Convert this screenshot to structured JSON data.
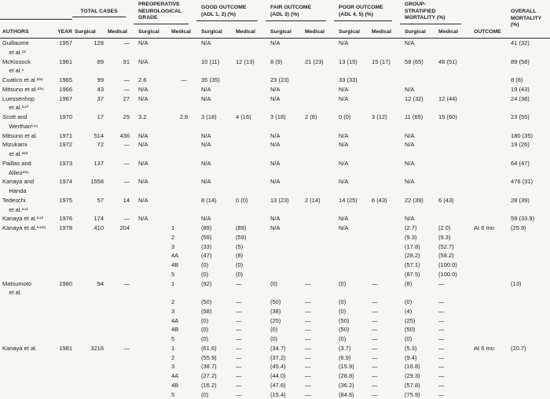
{
  "table": {
    "header": {
      "authors": "AUTHORS",
      "year": "YEAR",
      "surgical": "Surgical",
      "medical": "Medical",
      "outcome": "OUTCOME",
      "overall": "OVERALL\nMORTALITY\n(%)",
      "groups": [
        {
          "label": "TOTAL CASES"
        },
        {
          "label": "PREOPERATIVE\nNEUROLOGICAL\nGRADE"
        },
        {
          "label": "GOOD OUTCOME\n(ADL 1, 2) (%)"
        },
        {
          "label": "FAIR OUTCOME\n(ADL 3) (%)"
        },
        {
          "label": "POOR OUTCOME\n(ADL 4, 5) (%)"
        },
        {
          "label": "GROUP-\nSTRATIFIED\nMORTALITY (%)"
        }
      ]
    },
    "rows": [
      [
        "Guillaume",
        "1957",
        "128",
        "—",
        "N/A",
        "",
        "N/A",
        "",
        "N/A",
        "",
        "N/A",
        "",
        "N/A",
        "",
        "",
        "41 (32)"
      ],
      [
        "    et al.¹³",
        "",
        "",
        "",
        "",
        "",
        "",
        "",
        "",
        "",
        "",
        "",
        "",
        "",
        "",
        ""
      ],
      [
        "McKissock",
        "1961",
        "89",
        "91",
        "N/A",
        "",
        "10 (11)",
        "12 (13)",
        "8 (9)",
        "21 (23)",
        "13 (15)",
        "15 (17)",
        "58 (65)",
        "46 (51)",
        "",
        "89 (58)"
      ],
      [
        "    et al.¹",
        "",
        "",
        "",
        "",
        "",
        "",
        "",
        "",
        "",
        "",
        "",
        "",
        "",
        "",
        ""
      ],
      [
        "Cuatico et al.²³⁸",
        "1965",
        "99",
        "—",
        "2.6",
        "—",
        "35 (35)",
        "",
        "23 (23)",
        "",
        "33 (33)",
        "",
        "",
        "",
        "",
        "8 (8)"
      ],
      [
        "Mitsuno et al.²³⁹",
        "1966",
        "43",
        "—",
        "N/A",
        "",
        "N/A",
        "",
        "N/A",
        "",
        "N/A",
        "",
        "N/A",
        "",
        "",
        "19 (43)"
      ],
      [
        "Luessenhop",
        "1967",
        "37",
        "27",
        "N/A",
        "",
        "N/A",
        "",
        "N/A",
        "",
        "N/A",
        "",
        "12 (32)",
        "12 (44)",
        "",
        "24 (38)"
      ],
      [
        "    et al.²⁴⁰",
        "",
        "",
        "",
        "",
        "",
        "",
        "",
        "",
        "",
        "",
        "",
        "",
        "",
        "",
        ""
      ],
      [
        "Scott and",
        "1970",
        "17",
        "25",
        "3.2",
        "2.8",
        "3 (18)",
        "4 (16)",
        "3 (18)",
        "2 (8)",
        "0 (0)",
        "3 (12)",
        "11 (65)",
        "15 (60)",
        "",
        "23 (55)"
      ],
      [
        "    Werthan¹⁴⁶",
        "",
        "",
        "",
        "",
        "",
        "",
        "",
        "",
        "",
        "",
        "",
        "",
        "",
        "",
        ""
      ],
      [
        "Mitsuno et al.",
        "1971",
        "514",
        "436",
        "N/A",
        "",
        "N/A",
        "",
        "N/A",
        "",
        "N/A",
        "",
        "N/A",
        "",
        "",
        "180 (35)"
      ],
      [
        "Mizukami",
        "1972",
        "72",
        "—",
        "N/A",
        "",
        "N/A",
        "",
        "N/A",
        "",
        "N/A",
        "",
        "N/A",
        "",
        "",
        "19 (26)"
      ],
      [
        "    et al.²²³",
        "",
        "",
        "",
        "",
        "",
        "",
        "",
        "",
        "",
        "",
        "",
        "",
        "",
        "",
        ""
      ],
      [
        "Paillas and",
        "1973",
        "137",
        "—",
        "N/A",
        "",
        "N/A",
        "",
        "N/A",
        "",
        "N/A",
        "",
        "N/A",
        "",
        "",
        "64 (47)"
      ],
      [
        "    Alliez²³⁶",
        "",
        "",
        "",
        "",
        "",
        "",
        "",
        "",
        "",
        "",
        "",
        "",
        "",
        "",
        ""
      ],
      [
        "Kanaya and",
        "1974",
        "1558",
        "—",
        "N/A",
        "",
        "N/A",
        "",
        "N/A",
        "",
        "N/A",
        "",
        "N/A",
        "",
        "",
        "476 (31)"
      ],
      [
        "    Handa",
        "",
        "",
        "",
        "",
        "",
        "",
        "",
        "",
        "",
        "",
        "",
        "",
        "",
        "",
        ""
      ],
      [
        "Tedeschi",
        "1975",
        "57",
        "14",
        "N/A",
        "",
        "8 (14)",
        "0 (0)",
        "13 (23)",
        "2 (14)",
        "14 (25)",
        "6 (43)",
        "22 (39)",
        "6 (43)",
        "",
        "28 (39)"
      ],
      [
        "    et al.²⁴¹",
        "",
        "",
        "",
        "",
        "",
        "",
        "",
        "",
        "",
        "",
        "",
        "",
        "",
        "",
        ""
      ],
      [
        "Kanaya et al.²⁴²",
        "1976",
        "174",
        "—",
        "N/A",
        "",
        "N/A",
        "",
        "N/A",
        "",
        "N/A",
        "",
        "N/A",
        "",
        "",
        "59 (33.9)"
      ],
      [
        "Kanaya et al.²⁴²ᵃ",
        "1978",
        "410",
        "204",
        "@1",
        "",
        "(89)",
        "(89)",
        "N/A",
        "",
        "N/A",
        "",
        "(2.7)",
        "(2.0)",
        "At 6 mo",
        "(25.9)"
      ],
      [
        "",
        "",
        "",
        "",
        "@2",
        "",
        "(59)",
        "(59)",
        "",
        "",
        "",
        "",
        "(9.3)",
        "(9.3)",
        "",
        ""
      ],
      [
        "",
        "",
        "",
        "",
        "@3",
        "",
        "(33)",
        "(5)",
        "",
        "",
        "",
        "",
        "(17.8)",
        "(52.7)",
        "",
        ""
      ],
      [
        "",
        "",
        "",
        "",
        "@4A",
        "",
        "(47)",
        "(8)",
        "",
        "",
        "",
        "",
        "(28.2)",
        "(58.2)",
        "",
        ""
      ],
      [
        "",
        "",
        "",
        "",
        "@4B",
        "",
        "(0)",
        "(0)",
        "",
        "",
        "",
        "",
        "(57.1)",
        "(100.0)",
        "",
        ""
      ],
      [
        "",
        "",
        "",
        "",
        "@5",
        "",
        "(0)",
        "(0)",
        "",
        "",
        "",
        "",
        "(87.5)",
        "(100.0)",
        "",
        ""
      ],
      [
        "Matsumoto",
        "1980",
        "94",
        "—",
        "@1",
        "",
        "(92)",
        "—",
        "(0)",
        "—",
        "(0)",
        "—",
        "(8)",
        "—",
        "",
        "(13)"
      ],
      [
        "    et al.",
        "",
        "",
        "",
        "",
        "",
        "",
        "",
        "",
        "",
        "",
        "",
        "",
        "",
        "",
        ""
      ],
      [
        "",
        "",
        "",
        "",
        "@2",
        "",
        "(50)",
        "—",
        "(50)",
        "—",
        "(0)",
        "—",
        "(0)",
        "—",
        "",
        ""
      ],
      [
        "",
        "",
        "",
        "",
        "@3",
        "",
        "(58)",
        "—",
        "(38)",
        "—",
        "(0)",
        "—",
        "(4)",
        "—",
        "",
        ""
      ],
      [
        "",
        "",
        "",
        "",
        "@4A",
        "",
        "(0)",
        "—",
        "(25)",
        "—",
        "(50)",
        "—",
        "(25)",
        "—",
        "",
        ""
      ],
      [
        "",
        "",
        "",
        "",
        "@4B",
        "",
        "(0)",
        "—",
        "(0)",
        "—",
        "(50)",
        "—",
        "(50)",
        "—",
        "",
        ""
      ],
      [
        "",
        "",
        "",
        "",
        "@5",
        "",
        "(0)",
        "—",
        "(0)",
        "—",
        "(0)",
        "—",
        "(0)",
        "—",
        "",
        ""
      ],
      [
        "Kanaya et al.",
        "1981",
        "3216",
        "—",
        "@1",
        "",
        "(61.6)",
        "—",
        "(34.7)",
        "—",
        "(3.7)",
        "—",
        "(5.3)",
        "—",
        "At 6 mo",
        "(20.7)"
      ],
      [
        "",
        "",
        "",
        "",
        "@2",
        "",
        "(55.9)",
        "—",
        "(37.2)",
        "—",
        "(6.9)",
        "—",
        "(9.4)",
        "—",
        "",
        ""
      ],
      [
        "",
        "",
        "",
        "",
        "@3",
        "",
        "(38.7)",
        "—",
        "(45.4)",
        "—",
        "(15.9)",
        "—",
        "(16.8)",
        "—",
        "",
        ""
      ],
      [
        "",
        "",
        "",
        "",
        "@4A",
        "",
        "(27.2)",
        "—",
        "(44.0)",
        "—",
        "(28.8)",
        "—",
        "(29.3)",
        "—",
        "",
        ""
      ],
      [
        "",
        "",
        "",
        "",
        "@4B",
        "",
        "(16.2)",
        "—",
        "(47.6)",
        "—",
        "(36.2)",
        "—",
        "(57.8)",
        "—",
        "",
        ""
      ],
      [
        "",
        "",
        "",
        "",
        "@5",
        "",
        "(0)",
        "—",
        "(15.4)",
        "—",
        "(84.6)",
        "—",
        "(75.9)",
        "—",
        "",
        ""
      ]
    ]
  }
}
